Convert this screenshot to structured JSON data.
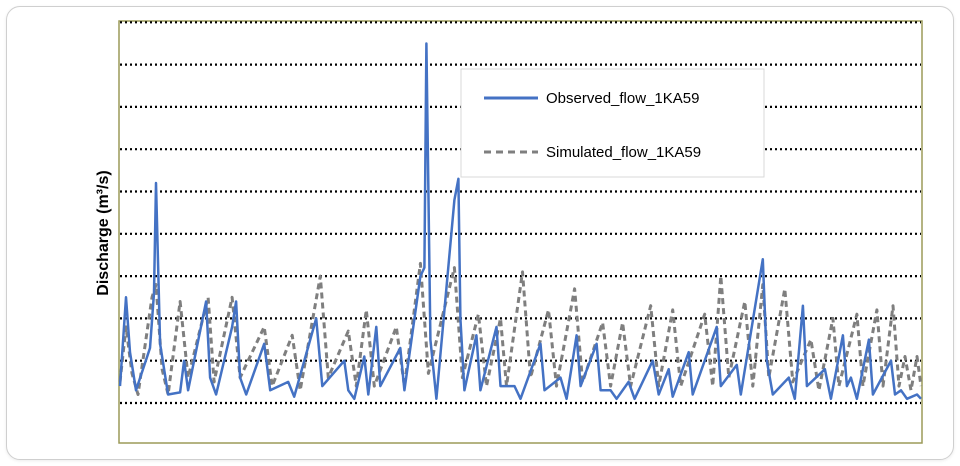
{
  "chart_data": {
    "type": "line",
    "title": "",
    "xlabel": "",
    "ylabel": "Discharge (m³/s)",
    "grid": "horizontal dotted",
    "legend_position": "top-right",
    "y_gridlines": 10,
    "ylim": [
      0,
      10
    ],
    "xlim": [
      0,
      400
    ],
    "series": [
      {
        "name": "Observed_flow_1KA59",
        "color": "#4472c4",
        "style": "solid",
        "peaks": [
          [
            0,
            0.4
          ],
          [
            3,
            2.5
          ],
          [
            5,
            1.2
          ],
          [
            8,
            0.3
          ],
          [
            15,
            1.3
          ],
          [
            17,
            2.6
          ],
          [
            18,
            5.2
          ],
          [
            20,
            1.4
          ],
          [
            24,
            0.2
          ],
          [
            30,
            0.25
          ],
          [
            32,
            1.0
          ],
          [
            34,
            0.3
          ],
          [
            43,
            2.4
          ],
          [
            45,
            0.6
          ],
          [
            48,
            0.2
          ],
          [
            56,
            1.8
          ],
          [
            58,
            2.4
          ],
          [
            60,
            0.6
          ],
          [
            63,
            0.2
          ],
          [
            72,
            1.4
          ],
          [
            75,
            0.3
          ],
          [
            84,
            0.5
          ],
          [
            87,
            0.15
          ],
          [
            98,
            2.0
          ],
          [
            101,
            0.4
          ],
          [
            112,
            1.0
          ],
          [
            114,
            0.3
          ],
          [
            117,
            0.1
          ],
          [
            122,
            1.1
          ],
          [
            124,
            0.2
          ],
          [
            128,
            1.8
          ],
          [
            130,
            0.4
          ],
          [
            140,
            1.3
          ],
          [
            142,
            0.3
          ],
          [
            150,
            3.0
          ],
          [
            152,
            3.2
          ],
          [
            153,
            8.5
          ],
          [
            155,
            1.5
          ],
          [
            158,
            0.1
          ],
          [
            167,
            4.8
          ],
          [
            169,
            5.3
          ],
          [
            170,
            2.0
          ],
          [
            172,
            0.3
          ],
          [
            178,
            1.6
          ],
          [
            180,
            0.3
          ],
          [
            188,
            1.8
          ],
          [
            190,
            0.4
          ],
          [
            197,
            0.4
          ],
          [
            200,
            0.1
          ],
          [
            210,
            1.4
          ],
          [
            212,
            0.3
          ],
          [
            220,
            0.6
          ],
          [
            223,
            0.1
          ],
          [
            228,
            1.6
          ],
          [
            230,
            0.4
          ],
          [
            238,
            1.4
          ],
          [
            240,
            0.3
          ],
          [
            245,
            0.3
          ],
          [
            248,
            0.1
          ],
          [
            254,
            0.5
          ],
          [
            257,
            0.1
          ],
          [
            266,
            1.0
          ],
          [
            269,
            0.2
          ],
          [
            274,
            0.8
          ],
          [
            276,
            0.15
          ],
          [
            284,
            1.2
          ],
          [
            286,
            0.2
          ],
          [
            298,
            1.8
          ],
          [
            300,
            0.4
          ],
          [
            308,
            0.9
          ],
          [
            310,
            0.2
          ],
          [
            321,
            3.4
          ],
          [
            323,
            1.0
          ],
          [
            326,
            0.2
          ],
          [
            334,
            0.6
          ],
          [
            337,
            0.1
          ],
          [
            341,
            2.3
          ],
          [
            343,
            0.4
          ],
          [
            352,
            0.8
          ],
          [
            355,
            0.1
          ],
          [
            361,
            1.6
          ],
          [
            363,
            0.4
          ],
          [
            365,
            0.6
          ],
          [
            368,
            0.1
          ],
          [
            374,
            1.5
          ],
          [
            376,
            0.2
          ],
          [
            385,
            1.0
          ],
          [
            387,
            0.2
          ],
          [
            390,
            0.3
          ],
          [
            393,
            0.1
          ],
          [
            398,
            0.2
          ],
          [
            400,
            0.1
          ]
        ]
      },
      {
        "name": "Simulated_flow_1KA59",
        "color": "#7f7f7f",
        "style": "dashed",
        "peaks": [
          [
            0,
            0.5
          ],
          [
            3,
            1.8
          ],
          [
            6,
            0.7
          ],
          [
            9,
            0.2
          ],
          [
            16,
            2.5
          ],
          [
            18,
            2.8
          ],
          [
            21,
            0.8
          ],
          [
            24,
            0.2
          ],
          [
            30,
            2.4
          ],
          [
            34,
            0.6
          ],
          [
            44,
            2.5
          ],
          [
            47,
            0.5
          ],
          [
            56,
            2.5
          ],
          [
            60,
            0.6
          ],
          [
            72,
            1.8
          ],
          [
            76,
            0.4
          ],
          [
            86,
            1.6
          ],
          [
            90,
            0.3
          ],
          [
            100,
            3.0
          ],
          [
            104,
            0.6
          ],
          [
            114,
            1.7
          ],
          [
            118,
            0.4
          ],
          [
            123,
            2.2
          ],
          [
            127,
            0.4
          ],
          [
            138,
            1.8
          ],
          [
            142,
            0.4
          ],
          [
            150,
            3.3
          ],
          [
            154,
            0.7
          ],
          [
            167,
            3.2
          ],
          [
            171,
            0.6
          ],
          [
            179,
            2.1
          ],
          [
            183,
            0.4
          ],
          [
            190,
            2.0
          ],
          [
            193,
            0.4
          ],
          [
            201,
            3.1
          ],
          [
            205,
            0.6
          ],
          [
            214,
            2.2
          ],
          [
            218,
            0.4
          ],
          [
            227,
            2.7
          ],
          [
            231,
            0.5
          ],
          [
            241,
            1.9
          ],
          [
            245,
            0.4
          ],
          [
            251,
            1.9
          ],
          [
            255,
            0.4
          ],
          [
            265,
            2.3
          ],
          [
            269,
            0.4
          ],
          [
            276,
            2.2
          ],
          [
            280,
            0.4
          ],
          [
            292,
            2.1
          ],
          [
            296,
            0.4
          ],
          [
            300,
            3.0
          ],
          [
            304,
            0.6
          ],
          [
            312,
            2.4
          ],
          [
            316,
            0.4
          ],
          [
            321,
            2.8
          ],
          [
            324,
            0.6
          ],
          [
            332,
            2.7
          ],
          [
            336,
            0.5
          ],
          [
            345,
            1.5
          ],
          [
            349,
            0.3
          ],
          [
            356,
            2.0
          ],
          [
            359,
            0.4
          ],
          [
            368,
            2.1
          ],
          [
            371,
            0.4
          ],
          [
            378,
            2.2
          ],
          [
            381,
            0.4
          ],
          [
            386,
            2.3
          ],
          [
            389,
            0.4
          ],
          [
            392,
            1.1
          ],
          [
            395,
            0.3
          ],
          [
            398,
            1.1
          ],
          [
            400,
            0.4
          ]
        ]
      }
    ]
  }
}
